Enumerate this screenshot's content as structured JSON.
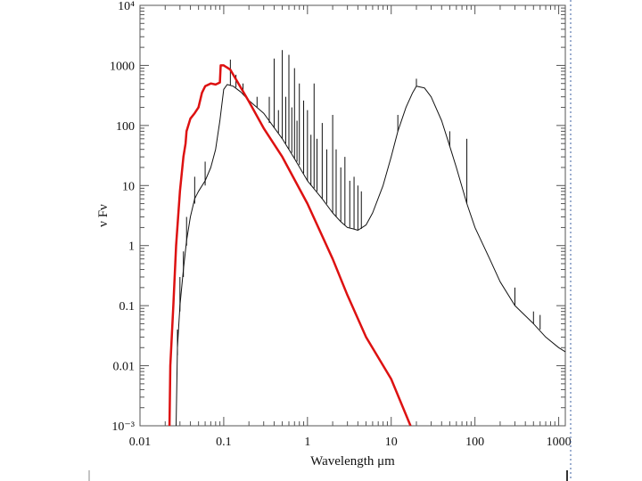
{
  "chart_data": {
    "type": "line",
    "title": "",
    "xlabel": "Wavelength μm",
    "ylabel": "ν Fν",
    "x_scale": "log",
    "y_scale": "log",
    "xlim": [
      0.01,
      1200
    ],
    "ylim": [
      0.001,
      10000
    ],
    "x_ticks": [
      {
        "value": 0.01,
        "label": "0.01"
      },
      {
        "value": 0.1,
        "label": "0.1"
      },
      {
        "value": 1,
        "label": "1"
      },
      {
        "value": 10,
        "label": "10"
      },
      {
        "value": 100,
        "label": "100"
      },
      {
        "value": 1000,
        "label": "1000"
      }
    ],
    "y_ticks": [
      {
        "value": 0.001,
        "label": "10⁻³"
      },
      {
        "value": 0.01,
        "label": "0.01"
      },
      {
        "value": 0.1,
        "label": "0.1"
      },
      {
        "value": 1,
        "label": "1"
      },
      {
        "value": 10,
        "label": "10"
      },
      {
        "value": 100,
        "label": "100"
      },
      {
        "value": 1000,
        "label": "1000"
      },
      {
        "value": 10000,
        "label": "10⁴"
      }
    ],
    "grid": false,
    "legend": "none",
    "series": [
      {
        "color": "#111111",
        "line_width": 1,
        "points": [
          [
            0.027,
            0.001
          ],
          [
            0.028,
            0.02
          ],
          [
            0.03,
            0.1
          ],
          [
            0.033,
            0.4
          ],
          [
            0.036,
            1.2
          ],
          [
            0.04,
            3
          ],
          [
            0.045,
            6
          ],
          [
            0.05,
            8
          ],
          [
            0.06,
            12
          ],
          [
            0.07,
            20
          ],
          [
            0.08,
            40
          ],
          [
            0.09,
            120
          ],
          [
            0.1,
            400
          ],
          [
            0.11,
            480
          ],
          [
            0.13,
            450
          ],
          [
            0.16,
            360
          ],
          [
            0.2,
            260
          ],
          [
            0.3,
            160
          ],
          [
            0.5,
            60
          ],
          [
            0.7,
            28
          ],
          [
            1,
            12
          ],
          [
            1.5,
            6
          ],
          [
            2,
            3.5
          ],
          [
            2.5,
            2.5
          ],
          [
            3,
            2
          ],
          [
            3.5,
            1.9
          ],
          [
            4,
            1.8
          ],
          [
            5,
            2.2
          ],
          [
            6,
            3.5
          ],
          [
            8,
            10
          ],
          [
            10,
            30
          ],
          [
            12,
            80
          ],
          [
            15,
            200
          ],
          [
            18,
            350
          ],
          [
            20,
            450
          ],
          [
            25,
            420
          ],
          [
            30,
            300
          ],
          [
            40,
            120
          ],
          [
            50,
            45
          ],
          [
            60,
            20
          ],
          [
            80,
            5
          ],
          [
            100,
            2
          ],
          [
            150,
            0.6
          ],
          [
            200,
            0.25
          ],
          [
            300,
            0.1
          ],
          [
            500,
            0.05
          ],
          [
            700,
            0.03
          ],
          [
            1000,
            0.02
          ],
          [
            1200,
            0.017
          ]
        ],
        "spikes": [
          [
            0.028,
            0.015,
            0.04
          ],
          [
            0.03,
            0.08,
            0.3
          ],
          [
            0.033,
            0.3,
            0.8
          ],
          [
            0.036,
            1,
            3
          ],
          [
            0.045,
            5,
            14
          ],
          [
            0.06,
            10,
            25
          ],
          [
            0.12,
            470,
            1250
          ],
          [
            0.14,
            430,
            700
          ],
          [
            0.17,
            340,
            500
          ],
          [
            0.25,
            200,
            300
          ],
          [
            0.35,
            110,
            300
          ],
          [
            0.4,
            90,
            1300
          ],
          [
            0.45,
            75,
            180
          ],
          [
            0.5,
            60,
            1800
          ],
          [
            0.55,
            50,
            300
          ],
          [
            0.6,
            40,
            1500
          ],
          [
            0.65,
            35,
            200
          ],
          [
            0.7,
            28,
            900
          ],
          [
            0.75,
            25,
            120
          ],
          [
            0.8,
            22,
            500
          ],
          [
            0.9,
            16,
            260
          ],
          [
            1,
            12,
            180
          ],
          [
            1.1,
            10,
            70
          ],
          [
            1.2,
            9,
            500
          ],
          [
            1.3,
            8,
            60
          ],
          [
            1.5,
            6,
            110
          ],
          [
            1.7,
            5,
            40
          ],
          [
            2,
            3.5,
            150
          ],
          [
            2.2,
            3,
            40
          ],
          [
            2.5,
            2.5,
            20
          ],
          [
            2.8,
            2.2,
            30
          ],
          [
            3.2,
            2,
            12
          ],
          [
            3.6,
            1.9,
            14
          ],
          [
            4,
            1.8,
            10
          ],
          [
            4.4,
            1.9,
            8
          ],
          [
            12,
            80,
            150
          ],
          [
            20,
            450,
            600
          ],
          [
            50,
            45,
            80
          ],
          [
            80,
            5,
            60
          ],
          [
            300,
            0.1,
            0.2
          ],
          [
            500,
            0.05,
            0.08
          ],
          [
            600,
            0.04,
            0.07
          ]
        ]
      },
      {
        "color": "#dd1111",
        "line_width": 2.5,
        "points": [
          [
            0.0225,
            0.001
          ],
          [
            0.023,
            0.01
          ],
          [
            0.025,
            0.1
          ],
          [
            0.027,
            1
          ],
          [
            0.03,
            8
          ],
          [
            0.033,
            30
          ],
          [
            0.035,
            50
          ],
          [
            0.036,
            80
          ],
          [
            0.04,
            130
          ],
          [
            0.045,
            160
          ],
          [
            0.05,
            200
          ],
          [
            0.055,
            350
          ],
          [
            0.06,
            450
          ],
          [
            0.07,
            500
          ],
          [
            0.08,
            480
          ],
          [
            0.09,
            520
          ],
          [
            0.092,
            1000
          ],
          [
            0.1,
            1000
          ],
          [
            0.12,
            850
          ],
          [
            0.15,
            500
          ],
          [
            0.2,
            250
          ],
          [
            0.3,
            90
          ],
          [
            0.5,
            30
          ],
          [
            1,
            5
          ],
          [
            2,
            0.6
          ],
          [
            3,
            0.15
          ],
          [
            5,
            0.03
          ],
          [
            10,
            0.006
          ],
          [
            17,
            0.001
          ]
        ]
      }
    ]
  }
}
